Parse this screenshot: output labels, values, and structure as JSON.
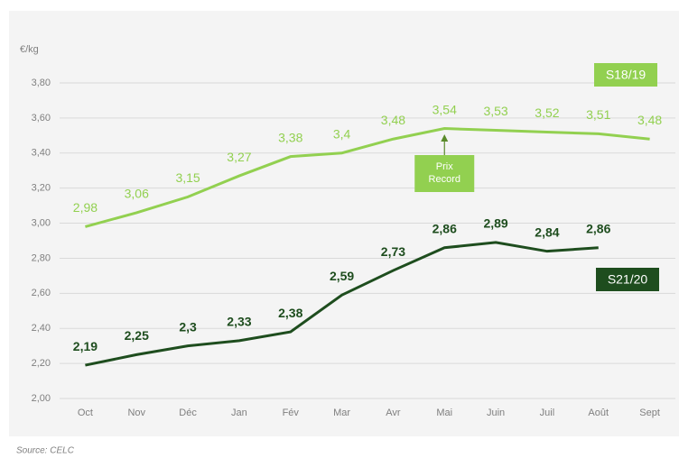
{
  "chart_data": {
    "type": "line",
    "y_unit": "€/kg",
    "categories": [
      "Oct",
      "Nov",
      "Déc",
      "Jan",
      "Fév",
      "Mar",
      "Avr",
      "Mai",
      "Juin",
      "Juil",
      "Août",
      "Sept"
    ],
    "series": [
      {
        "name": "S18/19",
        "color": "#92d050",
        "values": [
          2.98,
          3.06,
          3.15,
          3.27,
          3.38,
          3.4,
          3.48,
          3.54,
          3.53,
          3.52,
          3.51,
          3.48
        ],
        "value_labels": [
          "2,98",
          "3,06",
          "3,15",
          "3,27",
          "3,38",
          "3,4",
          "3,48",
          "3,54",
          "3,53",
          "3,52",
          "3,51",
          "3,48"
        ]
      },
      {
        "name": "S21/20",
        "color": "#1e4d1e",
        "values": [
          2.19,
          2.25,
          2.3,
          2.33,
          2.38,
          2.59,
          2.73,
          2.86,
          2.89,
          2.84,
          2.86,
          null
        ],
        "value_labels": [
          "2,19",
          "2,25",
          "2,3",
          "2,33",
          "2,38",
          "2,59",
          "2,73",
          "2,86",
          "2,89",
          "2,84",
          "2,86",
          null
        ]
      }
    ],
    "ylim": [
      2.0,
      3.8
    ],
    "yticks": [
      {
        "value": 2.0,
        "label": "2,00"
      },
      {
        "value": 2.2,
        "label": "2,20"
      },
      {
        "value": 2.4,
        "label": "2,40"
      },
      {
        "value": 2.6,
        "label": "2,60"
      },
      {
        "value": 2.8,
        "label": "2,80"
      },
      {
        "value": 3.0,
        "label": "3,00"
      },
      {
        "value": 3.2,
        "label": "3,20"
      },
      {
        "value": 3.4,
        "label": "3,40"
      },
      {
        "value": 3.6,
        "label": "3,60"
      },
      {
        "value": 3.8,
        "label": "3,80"
      }
    ],
    "grid": true,
    "annotation": [
      "Prix",
      "Record"
    ],
    "source": "Source: CELC"
  }
}
